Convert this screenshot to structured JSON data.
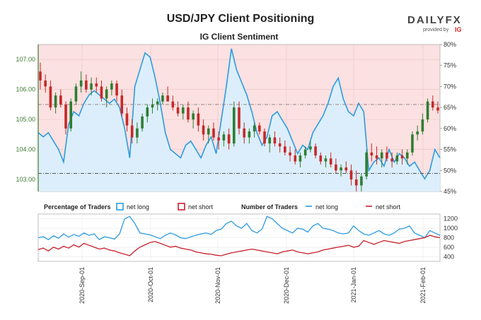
{
  "header": {
    "title": "USD/JPY Client Positioning",
    "subtitle": "IG Client Sentiment",
    "logo_text": "DAILYFX",
    "logo_sub": "provided by",
    "logo_brand": "IG"
  },
  "colors": {
    "net_long": "#2d9be0",
    "net_short": "#c8202c",
    "bull_candle": "#2e7d32",
    "bear_candle": "#c62828",
    "price_axis": "#3c7a2e"
  },
  "legend": {
    "pct_title": "Percentage of Traders",
    "pct_long": "net long",
    "pct_short": "net short",
    "num_title": "Number of Traders",
    "num_long": "net long",
    "num_short": "net short"
  },
  "chart_data": [
    {
      "type": "line",
      "title": "IG Client Sentiment",
      "x_labels": [
        "2020-Sep-01",
        "2020-Oct-01",
        "2020-Nov-01",
        "2020-Dec-01",
        "2021-Jan-01",
        "2021-Feb-01"
      ],
      "price_axis": {
        "ticks": [
          "107.00",
          "106.00",
          "105.00",
          "104.00",
          "103.00"
        ],
        "range": [
          102.6,
          107.5
        ]
      },
      "percent_axis": {
        "ticks": [
          "80%",
          "75%",
          "70%",
          "65%",
          "60%",
          "55%",
          "50%",
          "45%"
        ],
        "range": [
          45,
          80
        ]
      },
      "reference_lines": {
        "price_upper": 105.5,
        "price_lower": 103.2
      },
      "price_ohlc": [
        [
          106.6,
          106.9,
          106.0,
          106.3
        ],
        [
          106.3,
          106.5,
          105.9,
          106.1
        ],
        [
          106.1,
          106.3,
          105.3,
          105.4
        ],
        [
          105.4,
          105.9,
          105.2,
          105.8
        ],
        [
          105.8,
          106.0,
          105.4,
          105.5
        ],
        [
          105.5,
          105.6,
          104.5,
          104.7
        ],
        [
          104.7,
          105.7,
          104.6,
          105.6
        ],
        [
          105.6,
          106.2,
          105.5,
          106.1
        ],
        [
          106.1,
          106.6,
          105.9,
          106.3
        ],
        [
          106.3,
          106.5,
          105.9,
          106.0
        ],
        [
          106.0,
          106.4,
          105.8,
          106.2
        ],
        [
          106.2,
          106.4,
          105.9,
          106.1
        ],
        [
          106.1,
          106.3,
          105.6,
          105.7
        ],
        [
          105.7,
          106.1,
          105.4,
          106.0
        ],
        [
          106.0,
          106.3,
          105.8,
          106.2
        ],
        [
          106.2,
          106.3,
          105.6,
          105.8
        ],
        [
          105.8,
          106.0,
          105.1,
          105.2
        ],
        [
          105.2,
          105.4,
          104.6,
          104.8
        ],
        [
          104.8,
          105.0,
          104.2,
          104.4
        ],
        [
          104.4,
          104.9,
          104.2,
          104.7
        ],
        [
          104.7,
          105.2,
          104.6,
          105.1
        ],
        [
          105.1,
          105.5,
          104.9,
          105.4
        ],
        [
          105.4,
          105.7,
          105.2,
          105.5
        ],
        [
          105.5,
          105.7,
          105.3,
          105.6
        ],
        [
          105.6,
          105.9,
          105.5,
          105.8
        ],
        [
          105.8,
          106.1,
          105.6,
          105.6
        ],
        [
          105.6,
          105.8,
          105.3,
          105.4
        ],
        [
          105.4,
          105.6,
          105.1,
          105.2
        ],
        [
          105.2,
          105.5,
          105.0,
          105.4
        ],
        [
          105.4,
          105.6,
          104.9,
          105.0
        ],
        [
          105.0,
          105.3,
          104.7,
          105.2
        ],
        [
          105.2,
          105.4,
          104.6,
          104.8
        ],
        [
          104.8,
          105.0,
          104.3,
          104.5
        ],
        [
          104.5,
          104.8,
          104.2,
          104.7
        ],
        [
          104.7,
          104.9,
          104.3,
          104.4
        ],
        [
          104.4,
          104.6,
          104.0,
          104.3
        ],
        [
          104.3,
          104.6,
          104.1,
          104.5
        ],
        [
          104.5,
          104.7,
          104.0,
          104.2
        ],
        [
          104.2,
          105.6,
          104.1,
          105.4
        ],
        [
          105.4,
          105.6,
          104.5,
          104.7
        ],
        [
          104.7,
          104.9,
          104.2,
          104.4
        ],
        [
          104.4,
          104.7,
          104.2,
          104.6
        ],
        [
          104.6,
          104.9,
          104.4,
          104.8
        ],
        [
          104.8,
          104.9,
          104.5,
          104.6
        ],
        [
          104.6,
          104.7,
          104.1,
          104.2
        ],
        [
          104.2,
          104.5,
          103.9,
          104.4
        ],
        [
          104.4,
          104.6,
          104.1,
          104.2
        ],
        [
          104.2,
          104.4,
          103.9,
          104.1
        ],
        [
          104.1,
          104.3,
          103.8,
          103.9
        ],
        [
          103.9,
          104.1,
          103.6,
          103.8
        ],
        [
          103.8,
          104.0,
          103.5,
          103.6
        ],
        [
          103.6,
          103.9,
          103.4,
          103.8
        ],
        [
          103.8,
          104.1,
          103.7,
          104.0
        ],
        [
          104.0,
          104.3,
          103.9,
          104.1
        ],
        [
          104.1,
          104.2,
          103.7,
          103.8
        ],
        [
          103.8,
          103.9,
          103.5,
          103.6
        ],
        [
          103.6,
          103.8,
          103.4,
          103.7
        ],
        [
          103.7,
          103.9,
          103.4,
          103.5
        ],
        [
          103.5,
          103.7,
          103.2,
          103.3
        ],
        [
          103.3,
          103.5,
          103.1,
          103.4
        ],
        [
          103.4,
          103.6,
          103.2,
          103.3
        ],
        [
          103.3,
          103.5,
          102.8,
          103.0
        ],
        [
          103.0,
          103.3,
          102.6,
          102.8
        ],
        [
          102.8,
          103.2,
          102.6,
          103.1
        ],
        [
          103.1,
          104.0,
          103.0,
          103.9
        ],
        [
          103.9,
          104.2,
          103.6,
          103.8
        ],
        [
          103.8,
          104.1,
          103.5,
          103.7
        ],
        [
          103.7,
          104.0,
          103.4,
          103.9
        ],
        [
          103.9,
          104.1,
          103.6,
          103.7
        ],
        [
          103.7,
          103.9,
          103.4,
          103.6
        ],
        [
          103.6,
          103.9,
          103.5,
          103.8
        ],
        [
          103.8,
          104.0,
          103.5,
          103.7
        ],
        [
          103.7,
          104.0,
          103.5,
          103.9
        ],
        [
          103.9,
          104.6,
          103.8,
          104.5
        ],
        [
          104.5,
          104.8,
          104.3,
          104.6
        ],
        [
          104.6,
          105.2,
          104.5,
          105.0
        ],
        [
          105.0,
          105.7,
          104.9,
          105.6
        ],
        [
          105.6,
          105.8,
          105.3,
          105.4
        ],
        [
          105.4,
          105.6,
          105.2,
          105.3
        ]
      ],
      "series": [
        {
          "name": "net long",
          "values": [
            59,
            58,
            59,
            57,
            55,
            52,
            61,
            64,
            63,
            66,
            68,
            69,
            68,
            67,
            66,
            67,
            65,
            60,
            53,
            70,
            74,
            78,
            77,
            72,
            66,
            59,
            55,
            54,
            53,
            56,
            57,
            55,
            53,
            56,
            58,
            54,
            62,
            70,
            79,
            74,
            71,
            68,
            64,
            59,
            56,
            58,
            63,
            64,
            62,
            60,
            57,
            54,
            56,
            55,
            59,
            61,
            63,
            66,
            70,
            72,
            67,
            64,
            63,
            66,
            64,
            50,
            52,
            53,
            51,
            55,
            52,
            54,
            53,
            51,
            52,
            50,
            48,
            50,
            55,
            53
          ]
        },
        {
          "name": "net short",
          "values": [
            41,
            42,
            41,
            43,
            45,
            48,
            39,
            36,
            37,
            34,
            32,
            31,
            32,
            33,
            34,
            33,
            35,
            40,
            47,
            30,
            26,
            22,
            23,
            28,
            34,
            41,
            45,
            46,
            47,
            44,
            43,
            45,
            47,
            44,
            42,
            46,
            38,
            30,
            21,
            26,
            29,
            32,
            36,
            41,
            44,
            42,
            37,
            36,
            38,
            40,
            43,
            46,
            44,
            45,
            41,
            39,
            37,
            34,
            30,
            28,
            33,
            36,
            37,
            34,
            36,
            50,
            48,
            47,
            49,
            45,
            48,
            46,
            47,
            49,
            48,
            50,
            52,
            50,
            45,
            47
          ]
        }
      ]
    },
    {
      "type": "line",
      "title": "Number of Traders",
      "y_ticks": [
        "1200",
        "1000",
        "800",
        "600",
        "400"
      ],
      "ylim": [
        300,
        1300
      ],
      "series": [
        {
          "name": "net long",
          "values": [
            800,
            820,
            760,
            840,
            790,
            880,
            810,
            870,
            830,
            900,
            850,
            880,
            760,
            820,
            800,
            770,
            880,
            1200,
            1250,
            1100,
            900,
            880,
            860,
            820,
            780,
            850,
            900,
            860,
            800,
            780,
            820,
            850,
            880,
            900,
            870,
            950,
            980,
            1100,
            1150,
            1050,
            1000,
            1100,
            950,
            900,
            980,
            1250,
            1200,
            1100,
            1000,
            950,
            900,
            1000,
            980,
            920,
            1050,
            1100,
            1000,
            980,
            950,
            900,
            880,
            900,
            1050,
            950,
            880,
            850,
            900,
            950,
            880,
            850,
            900,
            980,
            1000,
            1050,
            900,
            850,
            800,
            950,
            900,
            850
          ]
        },
        {
          "name": "net short",
          "values": [
            550,
            580,
            520,
            600,
            560,
            620,
            580,
            650,
            600,
            680,
            640,
            600,
            560,
            580,
            540,
            520,
            480,
            450,
            420,
            520,
            600,
            650,
            700,
            720,
            680,
            640,
            600,
            620,
            580,
            560,
            540,
            500,
            480,
            460,
            450,
            430,
            420,
            450,
            480,
            500,
            520,
            540,
            560,
            540,
            520,
            500,
            480,
            460,
            500,
            520,
            540,
            500,
            480,
            460,
            480,
            500,
            540,
            560,
            580,
            600,
            620,
            640,
            600,
            620,
            740,
            700,
            660,
            700,
            740,
            720,
            700,
            680,
            720,
            740,
            760,
            780,
            800,
            850,
            820,
            800
          ]
        }
      ]
    }
  ]
}
